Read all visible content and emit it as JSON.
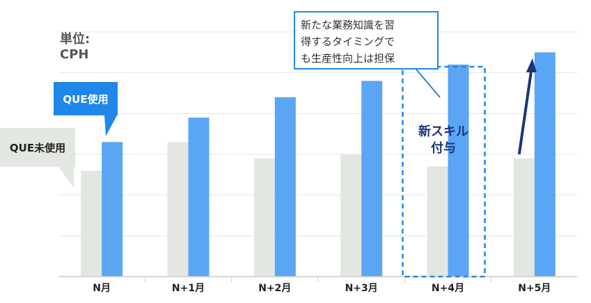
{
  "chart_data": {
    "type": "bar",
    "categories": [
      "N月",
      "N+1月",
      "N+2月",
      "N+3月",
      "N+4月",
      "N+5月"
    ],
    "series": [
      {
        "name": "QUE未使用",
        "values": [
          2.6,
          3.3,
          2.9,
          3.0,
          2.7,
          2.9
        ],
        "color": "#e3e7e1"
      },
      {
        "name": "QUE使用",
        "values": [
          3.3,
          3.9,
          4.4,
          4.8,
          5.2,
          5.5
        ],
        "color": "#5aa6f5"
      }
    ],
    "ylabel": "単位:\nCPH",
    "ylim": [
      0,
      6
    ],
    "grid": true,
    "annotations": {
      "que_callout": "QUE使用",
      "noque_callout": "QUE未使用",
      "note_lines": [
        "新たな業務知識を習",
        "得するタイミングで",
        "も生産性向上は担保"
      ],
      "highlight_label_lines": [
        "新スキル",
        "付与"
      ],
      "highlight_category": "N+4月"
    }
  }
}
